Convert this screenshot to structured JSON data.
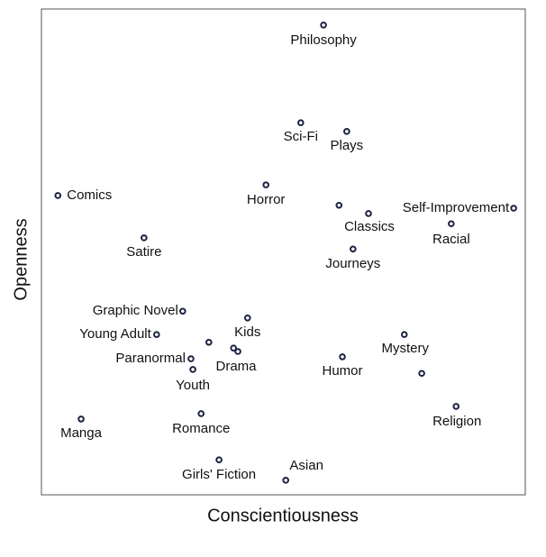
{
  "chart_data": {
    "type": "scatter",
    "xlabel": "Conscientiousness",
    "ylabel": "Openness",
    "xlim": [
      0,
      100
    ],
    "ylim": [
      0,
      100
    ],
    "color": "#1a2240",
    "labels": [
      "Philosophy",
      "Sci-Fi",
      "Plays",
      "Horror",
      "Comics",
      null,
      "Classics",
      "Self-Improvement",
      "Racial",
      "Satire",
      "Journeys",
      "Graphic Novel",
      "Kids",
      "Young Adult",
      null,
      null,
      "Drama",
      "Mystery",
      "Paranormal",
      "Youth",
      "Humor",
      null,
      "Religion",
      "Manga",
      "Romance",
      "Girls' Fiction",
      "Asian"
    ],
    "x": [
      58.3,
      53.6,
      63.1,
      46.4,
      3.4,
      61.5,
      67.6,
      97.6,
      84.7,
      21.2,
      64.4,
      29.2,
      42.6,
      23.8,
      34.6,
      39.7,
      40.6,
      75.0,
      30.9,
      31.3,
      62.2,
      78.6,
      85.7,
      8.2,
      33.0,
      36.7,
      50.5
    ],
    "y": [
      96.7,
      76.6,
      74.8,
      63.8,
      61.6,
      59.6,
      57.9,
      59.0,
      55.8,
      52.9,
      50.6,
      37.8,
      36.4,
      33.0,
      31.4,
      30.2,
      29.5,
      33.0,
      28.0,
      25.8,
      28.4,
      25.0,
      18.2,
      15.6,
      16.7,
      7.2,
      3.0
    ]
  }
}
